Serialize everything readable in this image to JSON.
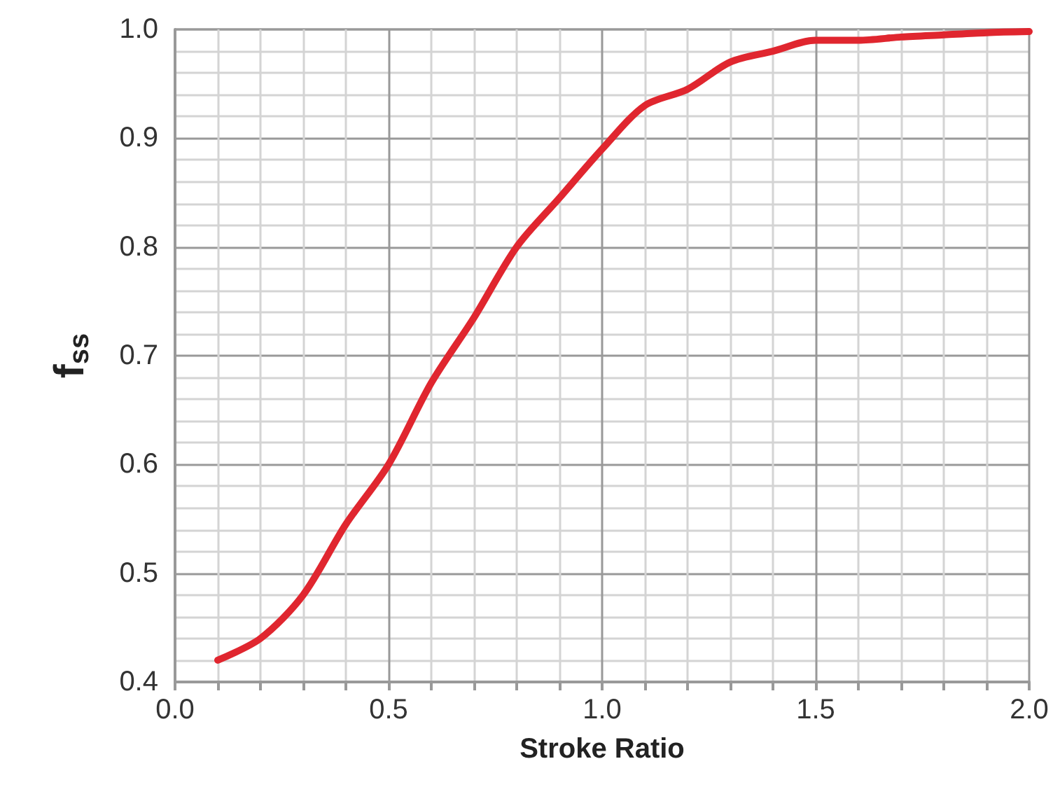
{
  "chart_data": {
    "type": "line",
    "xlabel": "Stroke Ratio",
    "ylabel": "f$_{ss}$",
    "x": [
      0.1,
      0.2,
      0.3,
      0.4,
      0.5,
      0.6,
      0.7,
      0.8,
      0.9,
      1.0,
      1.1,
      1.2,
      1.3,
      1.4,
      1.5,
      1.6,
      1.7,
      1.8,
      1.9,
      2.0
    ],
    "series": [
      {
        "color": "#e0262f",
        "values": [
          0.42,
          0.44,
          0.48,
          0.545,
          0.6,
          0.675,
          0.735,
          0.8,
          0.845,
          0.89,
          0.93,
          0.945,
          0.97,
          0.98,
          0.99,
          0.99,
          0.993,
          0.995,
          0.997,
          0.998
        ]
      }
    ],
    "xlim": [
      0,
      2
    ],
    "xticks": [
      {
        "value": 0,
        "label": "0.0"
      },
      {
        "value": 0.5,
        "label": "0.5"
      },
      {
        "value": 1,
        "label": "1.0"
      },
      {
        "value": 1.5,
        "label": "1.5"
      },
      {
        "value": 2,
        "label": "2.0"
      }
    ],
    "ylim": [
      0.4,
      1
    ],
    "yticks": [
      {
        "value": 0.4,
        "label": "0.4"
      },
      {
        "value": 0.5,
        "label": "0.5"
      },
      {
        "value": 0.6,
        "label": "0.6"
      },
      {
        "value": 0.7,
        "label": "0.7"
      },
      {
        "value": 0.8,
        "label": "0.8"
      },
      {
        "value": 0.9,
        "label": "0.9"
      },
      {
        "value": 1,
        "label": "1.0"
      }
    ],
    "grid": true,
    "marker": "none",
    "line_style": "solid"
  }
}
